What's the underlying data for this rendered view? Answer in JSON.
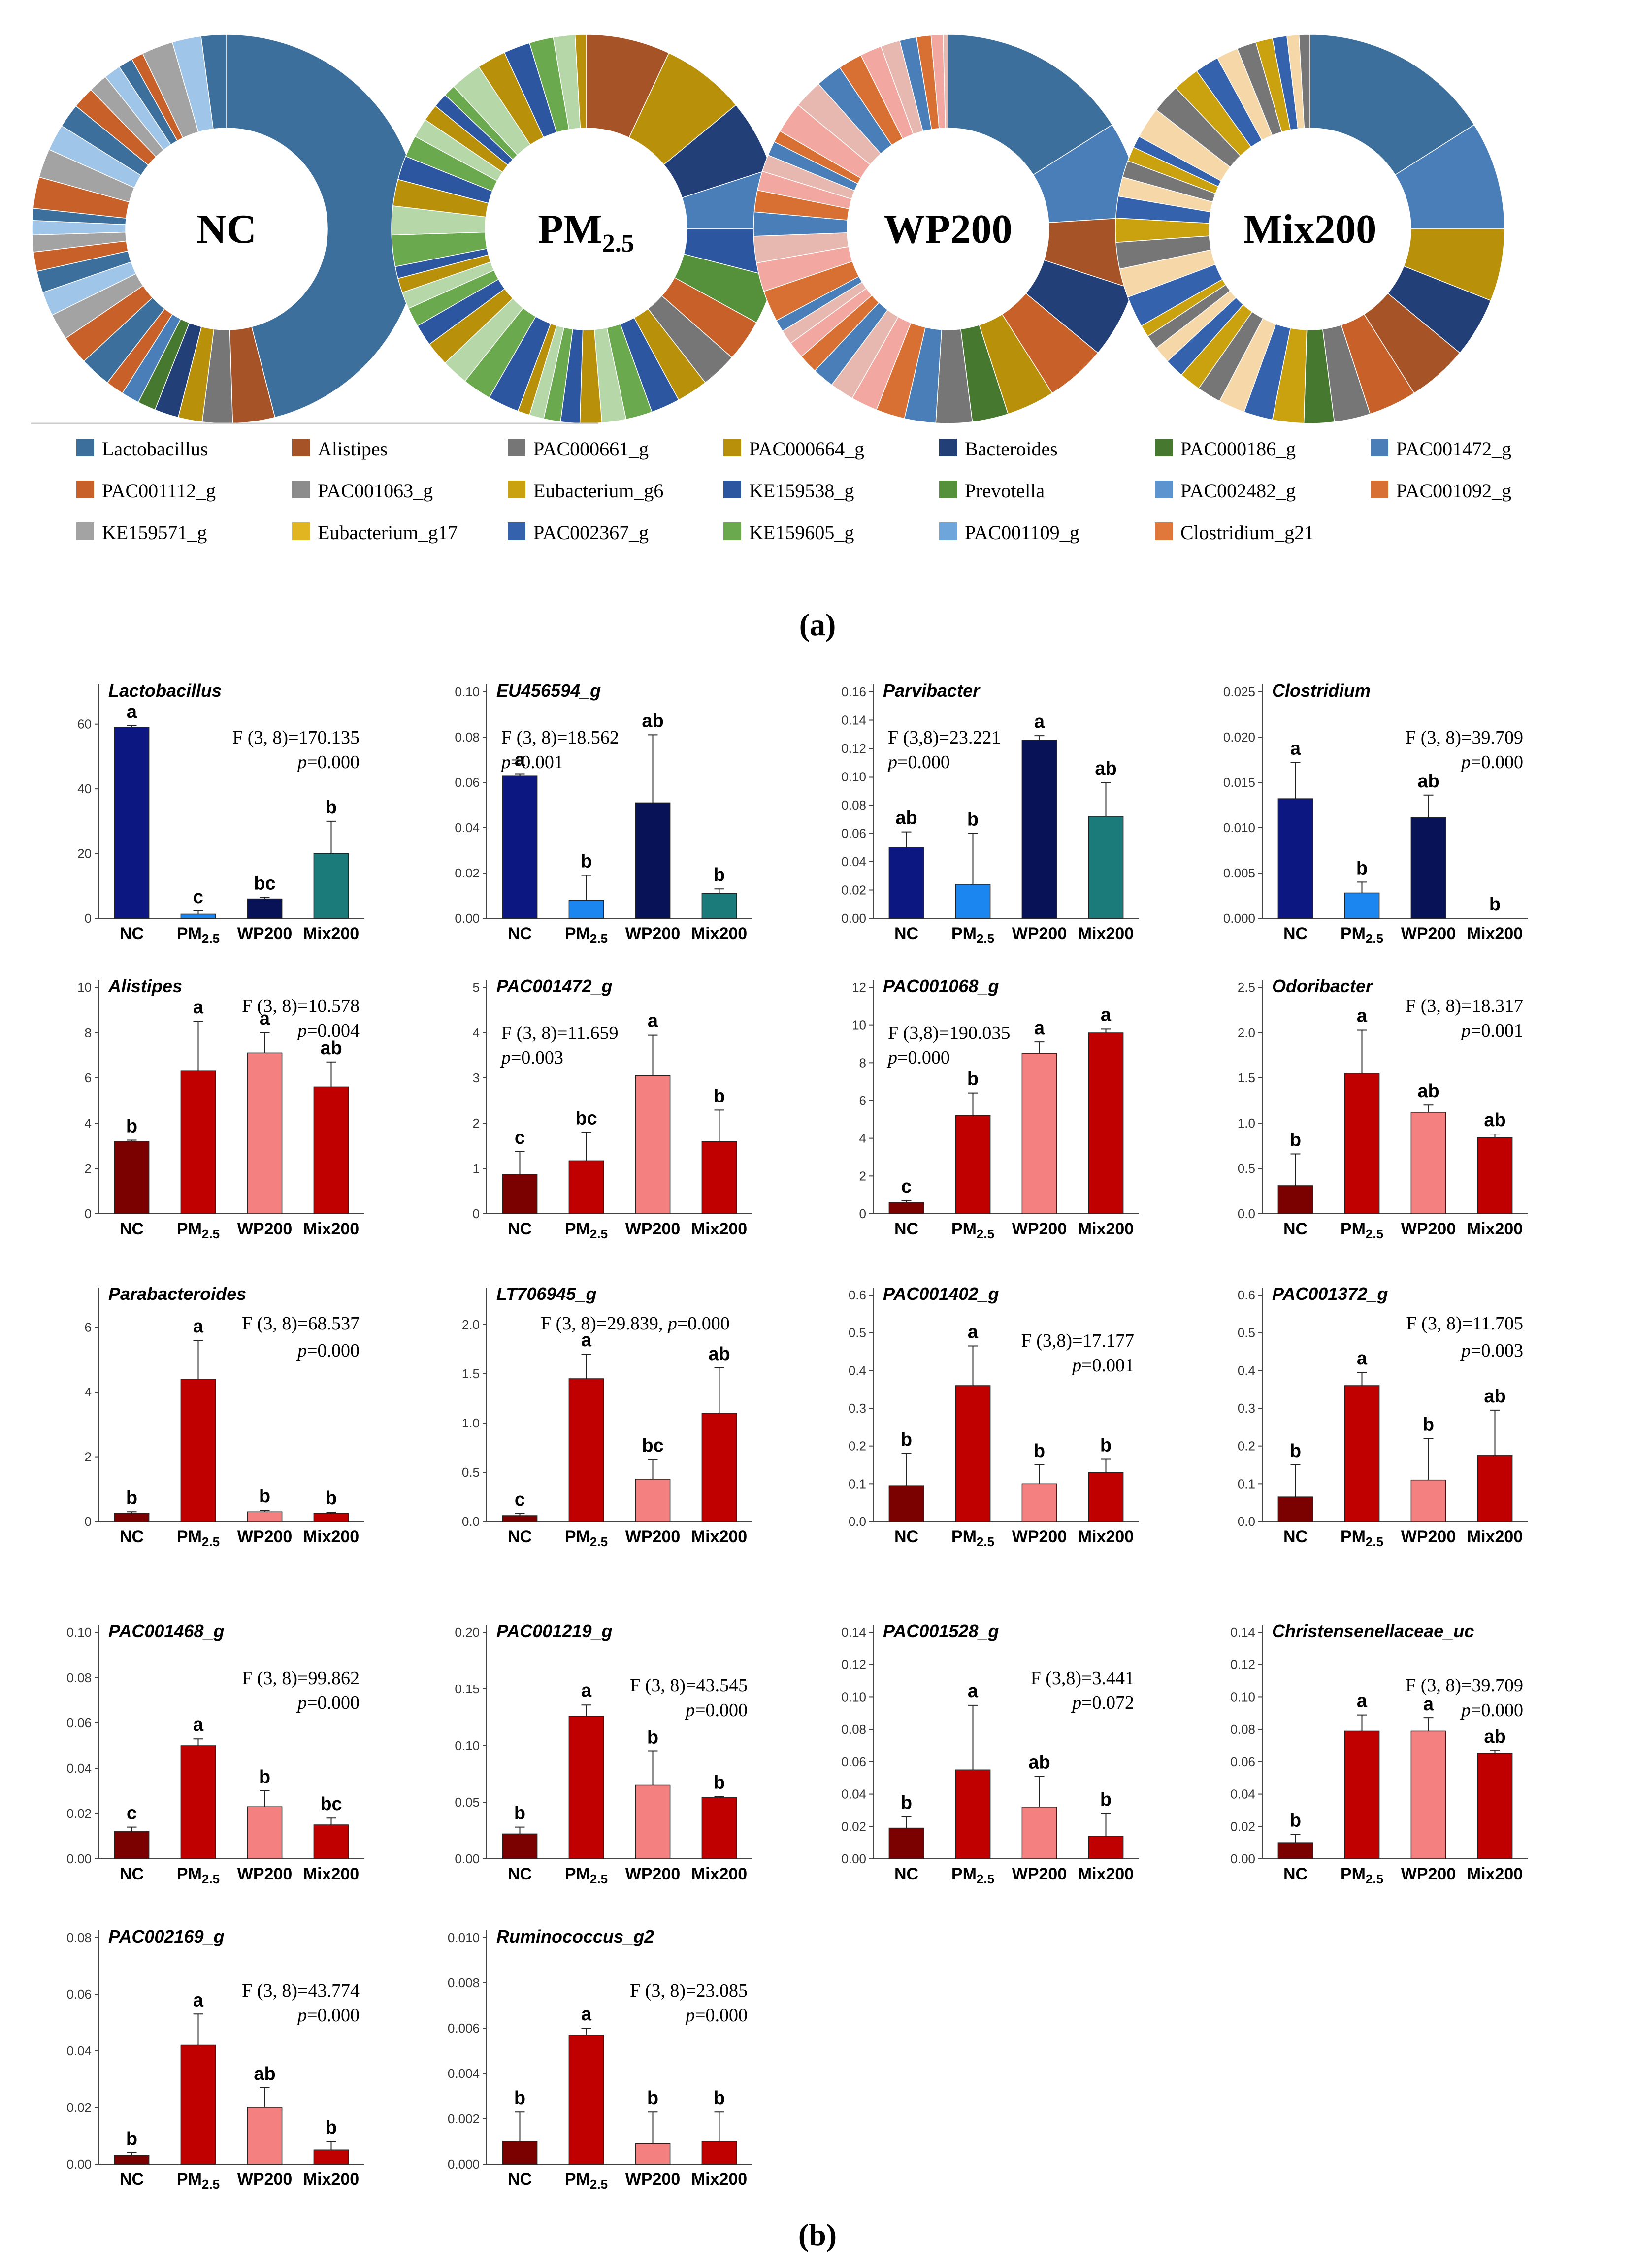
{
  "panel_a_label": "(a)",
  "panel_b_label": "(b)",
  "legend": [
    {
      "name": "Lactobacillus",
      "color": "#3d6f9c"
    },
    {
      "name": "Alistipes",
      "color": "#a65327"
    },
    {
      "name": "PAC000661_g",
      "color": "#767676"
    },
    {
      "name": "PAC000664_g",
      "color": "#b8900a"
    },
    {
      "name": "Bacteroides",
      "color": "#233f78"
    },
    {
      "name": "PAC000186_g",
      "color": "#46782f"
    },
    {
      "name": "PAC001472_g",
      "color": "#4a7eb8"
    },
    {
      "name": "PAC001112_g",
      "color": "#c8602a"
    },
    {
      "name": "PAC001063_g",
      "color": "#8c8c8c"
    },
    {
      "name": "Eubacterium_g6",
      "color": "#caa210"
    },
    {
      "name": "KE159538_g",
      "color": "#2d56a0"
    },
    {
      "name": "Prevotella",
      "color": "#55913b"
    },
    {
      "name": "PAC002482_g",
      "color": "#5b94cf"
    },
    {
      "name": "PAC001092_g",
      "color": "#d86f33"
    },
    {
      "name": "KE159571_g",
      "color": "#a3a3a3"
    },
    {
      "name": "Eubacterium_g17",
      "color": "#e0b521"
    },
    {
      "name": "PAC002367_g",
      "color": "#3562ad"
    },
    {
      "name": "KE159605_g",
      "color": "#6aa94d"
    },
    {
      "name": "PAC001109_g",
      "color": "#6ea6dc"
    },
    {
      "name": "Clostridium_g21",
      "color": "#e0783c"
    }
  ],
  "donuts": [
    {
      "label": "NC",
      "sub": "",
      "main_slices": [
        {
          "name": "Lactobacillus",
          "value": 46
        },
        {
          "name": "Alistipes",
          "value": 3.5
        },
        {
          "name": "PAC000661_g",
          "value": 2.5
        },
        {
          "name": "PAC000664_g",
          "value": 2
        },
        {
          "name": "Bacteroides",
          "value": 2
        },
        {
          "name": "PAC000186_g",
          "value": 1.5
        },
        {
          "name": "PAC001472_g",
          "value": 1.5
        },
        {
          "name": "PAC001112_g",
          "value": 1.5
        }
      ]
    },
    {
      "label": "PM",
      "sub": "2.5",
      "main_slices": [
        {
          "name": "Alistipes",
          "value": 7
        },
        {
          "name": "PAC000664_g",
          "value": 7
        },
        {
          "name": "Bacteroides",
          "value": 6
        },
        {
          "name": "PAC001472_g",
          "value": 5
        },
        {
          "name": "KE159538_g",
          "value": 4
        },
        {
          "name": "Prevotella",
          "value": 4
        },
        {
          "name": "PAC001112_g",
          "value": 3.5
        },
        {
          "name": "PAC000661_g",
          "value": 3
        }
      ]
    },
    {
      "label": "WP200",
      "sub": "",
      "main_slices": [
        {
          "name": "Lactobacillus",
          "value": 16
        },
        {
          "name": "PAC001472_g",
          "value": 8
        },
        {
          "name": "Alistipes",
          "value": 6
        },
        {
          "name": "Bacteroides",
          "value": 6
        },
        {
          "name": "PAC001112_g",
          "value": 5
        },
        {
          "name": "PAC000664_g",
          "value": 4
        },
        {
          "name": "PAC000186_g",
          "value": 3
        },
        {
          "name": "PAC000661_g",
          "value": 3
        }
      ]
    },
    {
      "label": "Mix200",
      "sub": "",
      "main_slices": [
        {
          "name": "Lactobacillus",
          "value": 16
        },
        {
          "name": "PAC001472_g",
          "value": 9
        },
        {
          "name": "PAC000664_g",
          "value": 6
        },
        {
          "name": "Bacteroides",
          "value": 5
        },
        {
          "name": "Alistipes",
          "value": 5
        },
        {
          "name": "PAC001112_g",
          "value": 4
        },
        {
          "name": "PAC000661_g",
          "value": 3
        },
        {
          "name": "PAC000186_g",
          "value": 2.5
        }
      ]
    }
  ],
  "chart_data": [
    {
      "type": "bar",
      "title": "Lactobacillus",
      "categories": [
        "NC",
        "PM2.5",
        "WP200",
        "Mix200"
      ],
      "values": [
        59,
        1.3,
        6,
        20
      ],
      "errors": [
        0.5,
        1,
        0.5,
        10
      ],
      "letters": [
        "a",
        "c",
        "bc",
        "b"
      ],
      "ylim": [
        0,
        70
      ],
      "yticks": [
        "0",
        "20",
        "40",
        "60"
      ],
      "stat_f": "F (3, 8)=170.135",
      "stat_p": "=0.000",
      "colors": [
        "#0c1782",
        "#1c86f0",
        "#081257",
        "#1b7a7a"
      ]
    },
    {
      "type": "bar",
      "title": "EU456594_g",
      "categories": [
        "NC",
        "PM2.5",
        "WP200",
        "Mix200"
      ],
      "values": [
        0.063,
        0.008,
        0.051,
        0.011
      ],
      "errors": [
        0.0008,
        0.011,
        0.03,
        0.002
      ],
      "letters": [
        "a",
        "b",
        "ab",
        "b"
      ],
      "ylim": [
        0,
        0.1
      ],
      "yticks": [
        "0.00",
        "0.02",
        "0.04",
        "0.06",
        "0.08",
        "0.10"
      ],
      "stat_f": "F (3, 8)=18.562",
      "stat_p": "=0.001",
      "colors": [
        "#0c1782",
        "#1c86f0",
        "#081257",
        "#1b7a7a"
      ]
    },
    {
      "type": "bar",
      "title": "Parvibacter",
      "categories": [
        "NC",
        "PM2.5",
        "WP200",
        "Mix200"
      ],
      "values": [
        0.05,
        0.024,
        0.126,
        0.072
      ],
      "errors": [
        0.011,
        0.036,
        0.003,
        0.024
      ],
      "letters": [
        "ab",
        "b",
        "a",
        "ab"
      ],
      "ylim": [
        0,
        0.16
      ],
      "yticks": [
        "0.00",
        "0.02",
        "0.04",
        "0.06",
        "0.08",
        "0.10",
        "0.12",
        "0.14",
        "0.16"
      ],
      "stat_f": "F (3,8)=23.221",
      "stat_p": "=0.000",
      "colors": [
        "#0c1782",
        "#1c86f0",
        "#081257",
        "#1b7a7a"
      ]
    },
    {
      "type": "bar",
      "title": "Clostridium",
      "categories": [
        "NC",
        "PM2.5",
        "WP200",
        "Mix200"
      ],
      "values": [
        0.0132,
        0.0028,
        0.0111,
        0
      ],
      "errors": [
        0.004,
        0.0012,
        0.0025,
        0
      ],
      "letters": [
        "a",
        "b",
        "ab",
        "b"
      ],
      "ylim": [
        0,
        0.025
      ],
      "yticks": [
        "0.000",
        "0.005",
        "0.010",
        "0.015",
        "0.020",
        "0.025"
      ],
      "stat_f": "F (3, 8)=39.709",
      "stat_p": "=0.000",
      "colors": [
        "#0c1782",
        "#1c86f0",
        "#081257",
        "#1b7a7a"
      ]
    },
    {
      "type": "bar",
      "title": "Alistipes",
      "categories": [
        "NC",
        "PM2.5",
        "WP200",
        "Mix200"
      ],
      "values": [
        3.2,
        6.3,
        7.1,
        5.6
      ],
      "errors": [
        0.05,
        2.2,
        0.9,
        1.1
      ],
      "letters": [
        "b",
        "a",
        "a",
        "ab"
      ],
      "ylim": [
        0,
        10
      ],
      "yticks": [
        "0",
        "2",
        "4",
        "6",
        "8",
        "10"
      ],
      "stat_f": "F (3, 8)=10.578",
      "stat_p": "=0.004",
      "colors": [
        "#7b0000",
        "#c00000",
        "#f48080",
        "#c00000"
      ]
    },
    {
      "type": "bar",
      "title": "PAC001472_g",
      "categories": [
        "NC",
        "PM2.5",
        "WP200",
        "Mix200"
      ],
      "values": [
        0.87,
        1.17,
        3.05,
        1.59
      ],
      "errors": [
        0.5,
        0.63,
        0.9,
        0.7
      ],
      "letters": [
        "c",
        "bc",
        "a",
        "b"
      ],
      "ylim": [
        0,
        5
      ],
      "yticks": [
        "0",
        "1",
        "2",
        "3",
        "4",
        "5"
      ],
      "stat_f": "F (3, 8)=11.659",
      "stat_p": "=0.003",
      "colors": [
        "#7b0000",
        "#c00000",
        "#f48080",
        "#c00000"
      ]
    },
    {
      "type": "bar",
      "title": "PAC001068_g",
      "categories": [
        "NC",
        "PM2.5",
        "WP200",
        "Mix200"
      ],
      "values": [
        0.6,
        5.2,
        8.5,
        9.6
      ],
      "errors": [
        0.1,
        1.2,
        0.6,
        0.2
      ],
      "letters": [
        "c",
        "b",
        "a",
        "a"
      ],
      "ylim": [
        0,
        12
      ],
      "yticks": [
        "0",
        "2",
        "4",
        "6",
        "8",
        "10",
        "12"
      ],
      "stat_f": "F (3,8)=190.035",
      "stat_p": "=0.000",
      "colors": [
        "#7b0000",
        "#c00000",
        "#f48080",
        "#c00000"
      ]
    },
    {
      "type": "bar",
      "title": "Odoribacter",
      "categories": [
        "NC",
        "PM2.5",
        "WP200",
        "Mix200"
      ],
      "values": [
        0.31,
        1.55,
        1.12,
        0.84
      ],
      "errors": [
        0.35,
        0.48,
        0.08,
        0.04
      ],
      "letters": [
        "b",
        "a",
        "ab",
        "ab"
      ],
      "ylim": [
        0,
        2.5
      ],
      "yticks": [
        "0.0",
        "0.5",
        "1.0",
        "1.5",
        "2.0",
        "2.5"
      ],
      "stat_f": "F (3, 8)=18.317",
      "stat_p": "=0.001",
      "colors": [
        "#7b0000",
        "#c00000",
        "#f48080",
        "#c00000"
      ]
    },
    {
      "type": "bar",
      "title": "Parabacteroides",
      "categories": [
        "NC",
        "PM2.5",
        "WP200",
        "Mix200"
      ],
      "values": [
        0.25,
        4.4,
        0.3,
        0.25
      ],
      "errors": [
        0.05,
        1.2,
        0.05,
        0.04
      ],
      "letters": [
        "b",
        "a",
        "b",
        "b"
      ],
      "ylim": [
        0,
        7
      ],
      "yticks": [
        "0",
        "2",
        "4",
        "6"
      ],
      "stat_f": "F (3, 8)=68.537",
      "stat_p": "=0.000",
      "colors": [
        "#7b0000",
        "#c00000",
        "#f48080",
        "#c00000"
      ]
    },
    {
      "type": "bar",
      "title": "LT706945_g",
      "categories": [
        "NC",
        "PM2.5",
        "WP200",
        "Mix200"
      ],
      "values": [
        0.06,
        1.45,
        0.43,
        1.1
      ],
      "errors": [
        0.02,
        0.25,
        0.2,
        0.46
      ],
      "letters": [
        "c",
        "a",
        "bc",
        "ab"
      ],
      "ylim": [
        0,
        2.3
      ],
      "yticks": [
        "0.0",
        "0.5",
        "1.0",
        "1.5",
        "2.0"
      ],
      "stat_f": "F (3, 8)=29.839, ",
      "stat_p": "=0.000",
      "colors": [
        "#7b0000",
        "#c00000",
        "#f48080",
        "#c00000"
      ]
    },
    {
      "type": "bar",
      "title": "PAC001402_g",
      "categories": [
        "NC",
        "PM2.5",
        "WP200",
        "Mix200"
      ],
      "values": [
        0.095,
        0.36,
        0.1,
        0.13
      ],
      "errors": [
        0.085,
        0.105,
        0.05,
        0.035
      ],
      "letters": [
        "b",
        "a",
        "b",
        "b"
      ],
      "ylim": [
        0,
        0.6
      ],
      "yticks": [
        "0.0",
        "0.1",
        "0.2",
        "0.3",
        "0.4",
        "0.5",
        "0.6"
      ],
      "stat_f": "F (3,8)=17.177",
      "stat_p": "=0.001",
      "colors": [
        "#7b0000",
        "#c00000",
        "#f48080",
        "#c00000"
      ]
    },
    {
      "type": "bar",
      "title": "PAC001372_g",
      "categories": [
        "NC",
        "PM2.5",
        "WP200",
        "Mix200"
      ],
      "values": [
        0.065,
        0.36,
        0.11,
        0.175
      ],
      "errors": [
        0.085,
        0.035,
        0.11,
        0.12
      ],
      "letters": [
        "b",
        "a",
        "b",
        "ab"
      ],
      "ylim": [
        0,
        0.6
      ],
      "yticks": [
        "0.0",
        "0.1",
        "0.2",
        "0.3",
        "0.4",
        "0.5",
        "0.6"
      ],
      "stat_f": "F (3, 8)=11.705",
      "stat_p": "=0.003",
      "colors": [
        "#7b0000",
        "#c00000",
        "#f48080",
        "#c00000"
      ]
    },
    {
      "type": "bar",
      "title": "PAC001468_g",
      "categories": [
        "NC",
        "PM2.5",
        "WP200",
        "Mix200"
      ],
      "values": [
        0.012,
        0.05,
        0.023,
        0.015
      ],
      "errors": [
        0.002,
        0.003,
        0.007,
        0.003
      ],
      "letters": [
        "c",
        "a",
        "b",
        "bc"
      ],
      "ylim": [
        0,
        0.1
      ],
      "yticks": [
        "0.00",
        "0.02",
        "0.04",
        "0.06",
        "0.08",
        "0.10"
      ],
      "stat_f": "F (3, 8)=99.862",
      "stat_p": "=0.000",
      "colors": [
        "#7b0000",
        "#c00000",
        "#f48080",
        "#c00000"
      ]
    },
    {
      "type": "bar",
      "title": "PAC001219_g",
      "categories": [
        "NC",
        "PM2.5",
        "WP200",
        "Mix200"
      ],
      "values": [
        0.022,
        0.126,
        0.065,
        0.054
      ],
      "errors": [
        0.006,
        0.01,
        0.03,
        0.001
      ],
      "letters": [
        "b",
        "a",
        "b",
        "b"
      ],
      "ylim": [
        0,
        0.2
      ],
      "yticks": [
        "0.00",
        "0.05",
        "0.10",
        "0.15",
        "0.20"
      ],
      "stat_f": "F (3, 8)=43.545",
      "stat_p": "=0.000",
      "colors": [
        "#7b0000",
        "#c00000",
        "#f48080",
        "#c00000"
      ]
    },
    {
      "type": "bar",
      "title": "PAC001528_g",
      "categories": [
        "NC",
        "PM2.5",
        "WP200",
        "Mix200"
      ],
      "values": [
        0.019,
        0.055,
        0.032,
        0.014
      ],
      "errors": [
        0.007,
        0.04,
        0.019,
        0.014
      ],
      "letters": [
        "b",
        "a",
        "ab",
        "b"
      ],
      "ylim": [
        0,
        0.14
      ],
      "yticks": [
        "0.00",
        "0.02",
        "0.04",
        "0.06",
        "0.08",
        "0.10",
        "0.12",
        "0.14"
      ],
      "stat_f": "F (3,8)=3.441",
      "stat_p": "=0.072",
      "colors": [
        "#7b0000",
        "#c00000",
        "#f48080",
        "#c00000"
      ]
    },
    {
      "type": "bar",
      "title": "Christensenellaceae_uc",
      "categories": [
        "NC",
        "PM2.5",
        "WP200",
        "Mix200"
      ],
      "values": [
        0.01,
        0.079,
        0.079,
        0.065
      ],
      "errors": [
        0.005,
        0.01,
        0.008,
        0.002
      ],
      "letters": [
        "b",
        "a",
        "a",
        "ab"
      ],
      "ylim": [
        0,
        0.14
      ],
      "yticks": [
        "0.00",
        "0.02",
        "0.04",
        "0.06",
        "0.08",
        "0.10",
        "0.12",
        "0.14"
      ],
      "stat_f": "F (3, 8)=39.709",
      "stat_p": "=0.000",
      "colors": [
        "#7b0000",
        "#c00000",
        "#f48080",
        "#c00000"
      ]
    },
    {
      "type": "bar",
      "title": "PAC002169_g",
      "categories": [
        "NC",
        "PM2.5",
        "WP200",
        "Mix200"
      ],
      "values": [
        0.003,
        0.042,
        0.02,
        0.005
      ],
      "errors": [
        0.001,
        0.011,
        0.007,
        0.003
      ],
      "letters": [
        "b",
        "a",
        "ab",
        "b"
      ],
      "ylim": [
        0,
        0.08
      ],
      "yticks": [
        "0.00",
        "0.02",
        "0.04",
        "0.06",
        "0.08"
      ],
      "stat_f": "F (3, 8)=43.774",
      "stat_p": "=0.000",
      "colors": [
        "#7b0000",
        "#c00000",
        "#f48080",
        "#c00000"
      ]
    },
    {
      "type": "bar",
      "title": "Ruminococcus_g2",
      "categories": [
        "NC",
        "PM2.5",
        "WP200",
        "Mix200"
      ],
      "values": [
        0.001,
        0.0057,
        0.0009,
        0.001
      ],
      "errors": [
        0.0013,
        0.0003,
        0.0014,
        0.0013
      ],
      "letters": [
        "b",
        "a",
        "b",
        "b"
      ],
      "ylim": [
        0,
        0.01
      ],
      "yticks": [
        "0.000",
        "0.002",
        "0.004",
        "0.006",
        "0.008",
        "0.010"
      ],
      "stat_f": "F (3, 8)=23.085",
      "stat_p": "=0.000",
      "colors": [
        "#7b0000",
        "#c00000",
        "#f48080",
        "#c00000"
      ]
    }
  ]
}
